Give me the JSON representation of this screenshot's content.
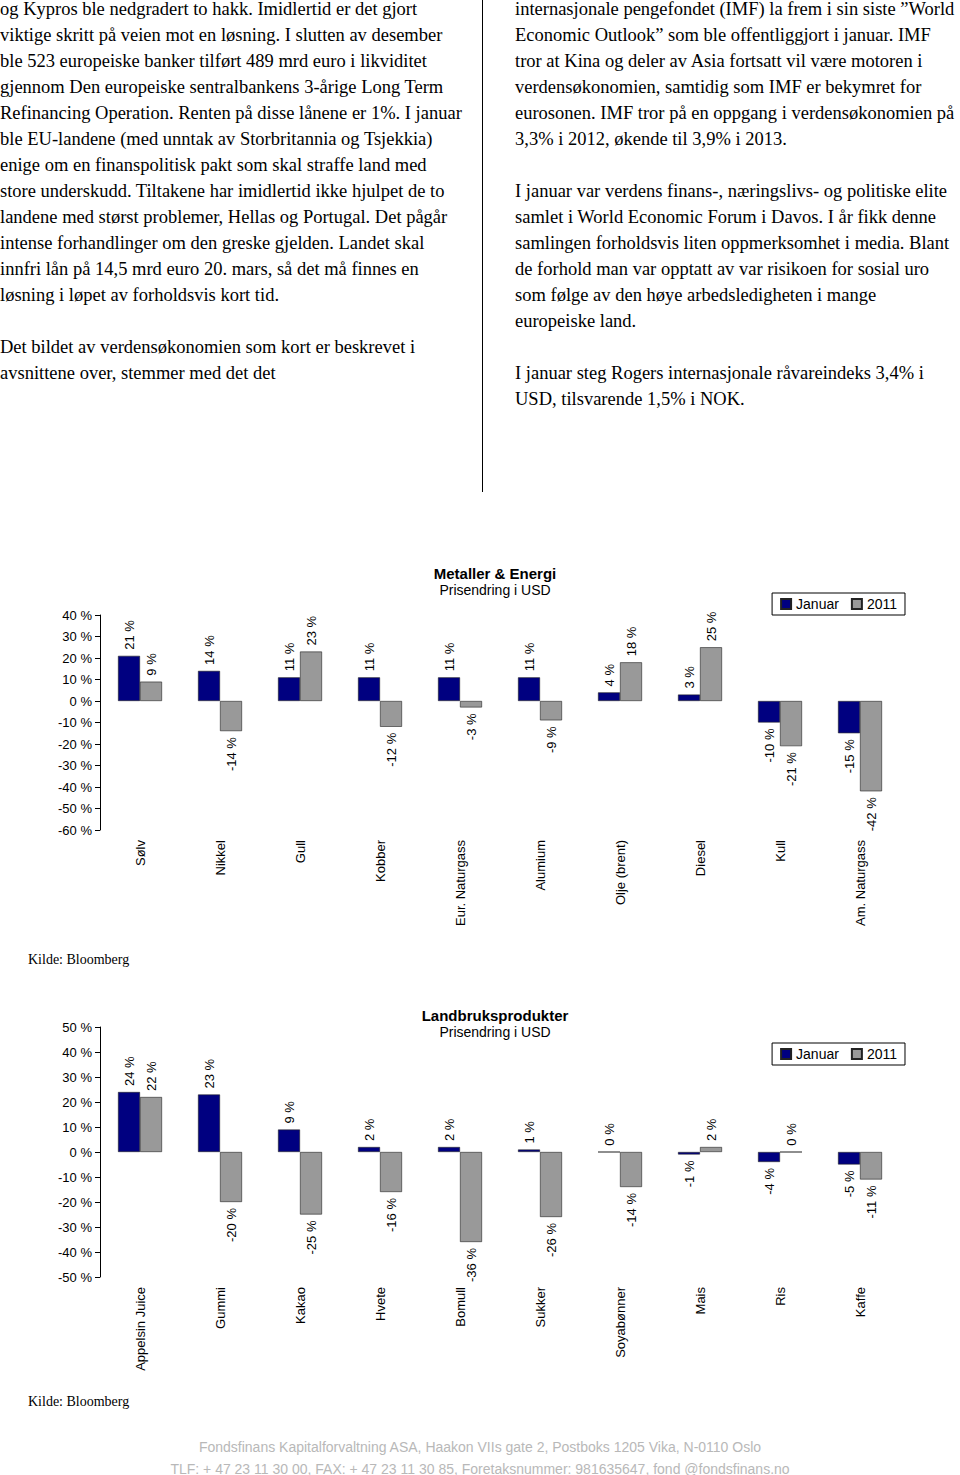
{
  "page": {
    "left_column": [
      "og Kypros ble nedgradert to hakk. Imidlertid er det gjort viktige skritt på veien mot en løsning. I slutten av desember ble 523 europeiske banker tilført 489 mrd euro i likviditet gjennom Den europeiske sentralbankens 3-årige Long Term Refinancing Operation. Renten på disse lånene er 1%. I januar ble EU-landene (med unntak av Storbritannia og Tsjekkia) enige om en finanspolitisk pakt som skal straffe land med store underskudd. Tiltakene har imidlertid ikke hjulpet de to landene med størst problemer, Hellas og Portugal. Det pågår intense forhandlinger om den greske gjelden. Landet skal innfri lån på 14,5 mrd euro 20. mars, så det må finnes en løsning i løpet av forholdsvis kort tid.",
      "Det bildet av verdensøkonomien som kort er beskrevet i avsnittene over, stemmer med det det"
    ],
    "right_column": [
      "internasjonale pengefondet (IMF) la frem i sin siste ”World Economic Outlook” som ble offentliggjort i januar. IMF tror at Kina og deler av Asia fortsatt vil være motoren i verdensøkonomien, samtidig som IMF er bekymret for eurosonen. IMF tror på en oppgang i verdensøkonomien på 3,3% i 2012, økende til 3,9% i 2013.",
      "I januar var verdens finans-, næringslivs- og politiske elite samlet i World Economic Forum i Davos. I år fikk denne samlingen forholdsvis liten oppmerksomhet i media. Blant de forhold man var opptatt av var risikoen for sosial uro som følge av den høye arbedsledigheten i mange europeiske land.",
      "I januar steg Rogers internasjonale råvareindeks 3,4% i USD, tilsvarende 1,5% i NOK."
    ],
    "footer": [
      "Fondsfinans Kapitalforvaltning ASA, Haakon VIIs gate 2, Postboks 1205 Vika, N-0110 Oslo",
      "TLF: + 47 23 11 30 00, FAX: + 47 23 11 30 85, Foretaksnummer: 981635647, fond @fondsfinans.no"
    ]
  },
  "chart_data": [
    {
      "type": "bar",
      "title": "Metaller & Energi",
      "subtitle": "Prisendring i USD",
      "categories": [
        "Sølv",
        "Nikkel",
        "Gull",
        "Kobber",
        "Eur. Naturgass",
        "Alumium",
        "Olje (brent)",
        "Diesel",
        "Kull",
        "Am. Naturgass"
      ],
      "series": [
        {
          "name": "Januar",
          "color": "#000080",
          "values": [
            21,
            14,
            11,
            11,
            11,
            11,
            4,
            3,
            -10,
            -15
          ],
          "value_labels": [
            "21 %",
            "14 %",
            "11 %",
            "11 %",
            "11 %",
            "11 %",
            "4 %",
            "3 %",
            "-10 %",
            "-15 %"
          ]
        },
        {
          "name": "2011",
          "color": "#999999",
          "values": [
            9,
            -14,
            23,
            -12,
            -3,
            -9,
            18,
            25,
            -21,
            -42
          ],
          "value_labels": [
            "9 %",
            "-14 %",
            "23 %",
            "-12 %",
            "-3 %",
            "-9 %",
            "18 %",
            "25 %",
            "-21 %",
            "-42 %"
          ]
        }
      ],
      "ylim": [
        -60,
        40
      ],
      "yticks": [
        {
          "value": -60,
          "label": "-60 %"
        },
        {
          "value": -50,
          "label": "-50 %"
        },
        {
          "value": -40,
          "label": "-40 %"
        },
        {
          "value": -30,
          "label": "-30 %"
        },
        {
          "value": -20,
          "label": "-20 %"
        },
        {
          "value": -10,
          "label": "-10 %"
        },
        {
          "value": 0,
          "label": "0 %"
        },
        {
          "value": 10,
          "label": "10 %"
        },
        {
          "value": 20,
          "label": "20 %"
        },
        {
          "value": 30,
          "label": "30 %"
        },
        {
          "value": 40,
          "label": "40 %"
        }
      ],
      "grid": false,
      "data_labels": true,
      "legend": "top-right",
      "source": "Kilde: Bloomberg"
    },
    {
      "type": "bar",
      "title": "Landbruksprodukter",
      "subtitle": "Prisendring i USD",
      "categories": [
        "Appelsin Juice",
        "Gummi",
        "Kakao",
        "Hvete",
        "Bomull",
        "Sukker",
        "Soyabønner",
        "Mais",
        "Ris",
        "Kaffe"
      ],
      "series": [
        {
          "name": "Januar",
          "color": "#000080",
          "values": [
            24,
            23,
            9,
            2,
            2,
            1,
            0,
            -1,
            -4,
            -5
          ],
          "value_labels": [
            "24 %",
            "23 %",
            "9 %",
            "2 %",
            "2 %",
            "1 %",
            "0 %",
            "-1 %",
            "-4 %",
            "-5 %"
          ]
        },
        {
          "name": "2011",
          "color": "#999999",
          "values": [
            22,
            -20,
            -25,
            -16,
            -36,
            -26,
            -14,
            2,
            0,
            -11
          ],
          "value_labels": [
            "22 %",
            "-20 %",
            "-25 %",
            "-16 %",
            "-36 %",
            "-26 %",
            "-14 %",
            "2 %",
            "0 %",
            "-11 %"
          ]
        }
      ],
      "ylim": [
        -50,
        50
      ],
      "yticks": [
        {
          "value": -50,
          "label": "-50 %"
        },
        {
          "value": -40,
          "label": "-40 %"
        },
        {
          "value": -30,
          "label": "-30 %"
        },
        {
          "value": -20,
          "label": "-20 %"
        },
        {
          "value": -10,
          "label": "-10 %"
        },
        {
          "value": 0,
          "label": "0 %"
        },
        {
          "value": 10,
          "label": "10 %"
        },
        {
          "value": 20,
          "label": "20 %"
        },
        {
          "value": 30,
          "label": "30 %"
        },
        {
          "value": 40,
          "label": "40 %"
        },
        {
          "value": 50,
          "label": "50 %"
        }
      ],
      "grid": false,
      "data_labels": true,
      "legend": "top-right",
      "source": "Kilde: Bloomberg"
    }
  ]
}
